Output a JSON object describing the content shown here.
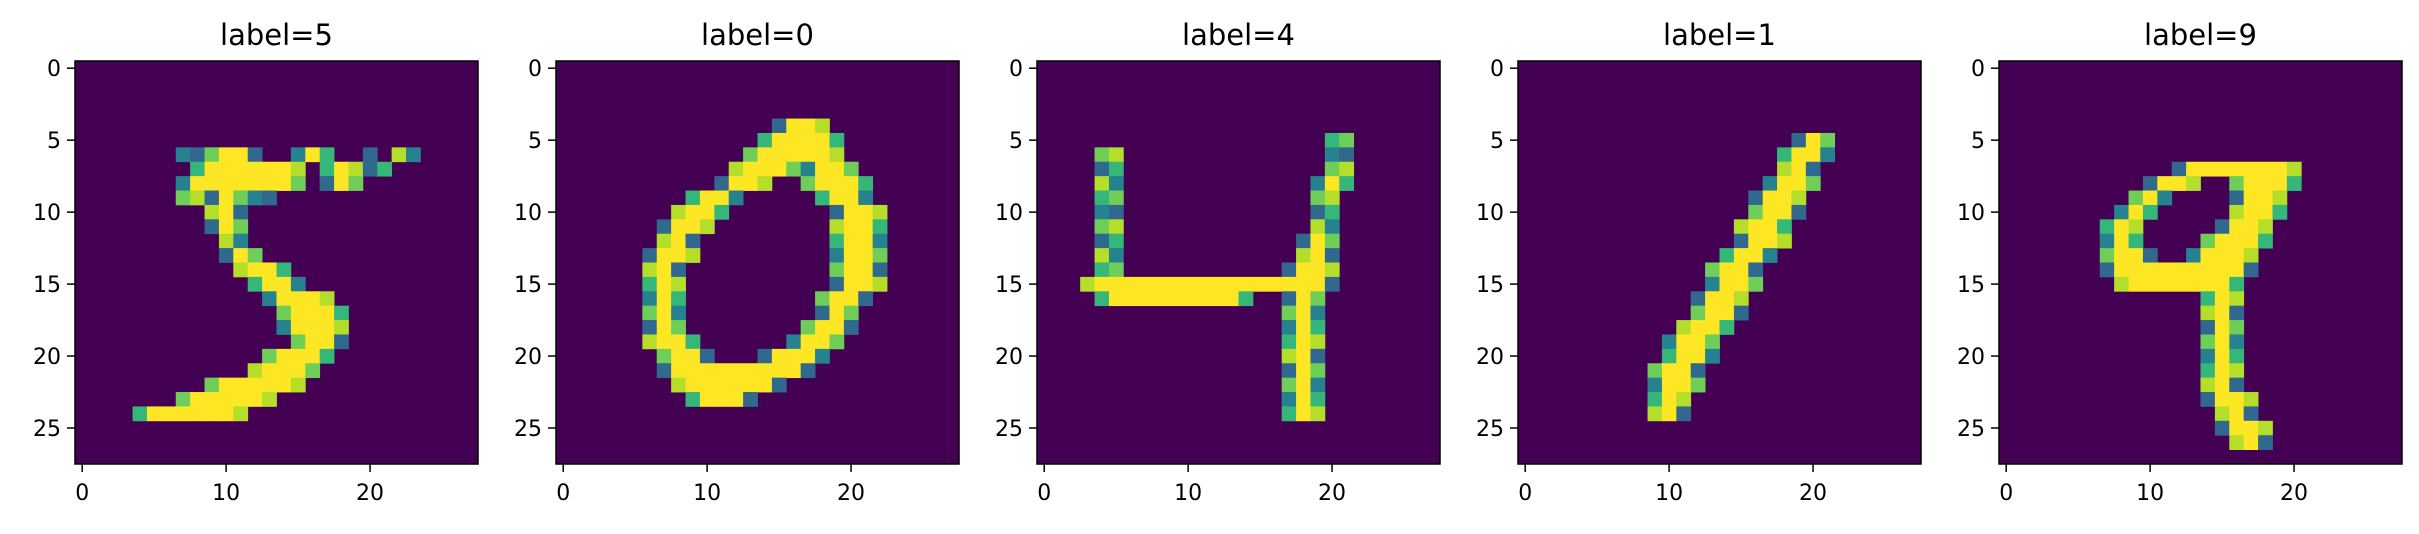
{
  "chart_data": [
    {
      "type": "heatmap",
      "title": "label=5",
      "xticks": [
        0,
        10,
        20
      ],
      "yticks": [
        0,
        5,
        10,
        15,
        20,
        25
      ],
      "xlim": [
        -0.5,
        27.5
      ],
      "ylim": [
        27.5,
        -0.5
      ],
      "colormap": "viridis",
      "pixels": [
        [
          6,
          7,
          8
        ],
        [
          6,
          9,
          12
        ],
        [
          6,
          15,
          17
        ],
        [
          6,
          20,
          20
        ],
        [
          6,
          22,
          23
        ],
        [
          7,
          8,
          15
        ],
        [
          7,
          17,
          19
        ],
        [
          7,
          20,
          21
        ],
        [
          8,
          7,
          15
        ],
        [
          8,
          17,
          19
        ],
        [
          9,
          7,
          8
        ],
        [
          9,
          9,
          11
        ],
        [
          9,
          12,
          13
        ],
        [
          10,
          9,
          11
        ],
        [
          11,
          9,
          11
        ],
        [
          12,
          10,
          11
        ],
        [
          13,
          10,
          12
        ],
        [
          14,
          11,
          14
        ],
        [
          15,
          12,
          15
        ],
        [
          16,
          13,
          17
        ],
        [
          17,
          14,
          18
        ],
        [
          18,
          14,
          18
        ],
        [
          19,
          15,
          18
        ],
        [
          20,
          13,
          17
        ],
        [
          21,
          12,
          16
        ],
        [
          22,
          9,
          15
        ],
        [
          23,
          7,
          13
        ],
        [
          24,
          4,
          11
        ]
      ]
    },
    {
      "type": "heatmap",
      "title": "label=0",
      "xticks": [
        0,
        10,
        20
      ],
      "yticks": [
        0,
        5,
        10,
        15,
        20,
        25
      ],
      "xlim": [
        -0.5,
        27.5
      ],
      "ylim": [
        27.5,
        -0.5
      ],
      "colormap": "viridis",
      "pixels": [
        [
          4,
          15,
          18
        ],
        [
          5,
          14,
          19
        ],
        [
          6,
          13,
          19
        ],
        [
          7,
          12,
          16
        ],
        [
          7,
          17,
          20
        ],
        [
          8,
          11,
          14
        ],
        [
          8,
          17,
          21
        ],
        [
          9,
          9,
          12
        ],
        [
          9,
          18,
          21
        ],
        [
          10,
          8,
          11
        ],
        [
          10,
          19,
          22
        ],
        [
          11,
          7,
          10
        ],
        [
          11,
          19,
          22
        ],
        [
          12,
          7,
          9
        ],
        [
          12,
          19,
          22
        ],
        [
          13,
          6,
          9
        ],
        [
          13,
          19,
          22
        ],
        [
          14,
          6,
          8
        ],
        [
          14,
          19,
          22
        ],
        [
          15,
          6,
          8
        ],
        [
          15,
          19,
          22
        ],
        [
          16,
          6,
          8
        ],
        [
          16,
          18,
          21
        ],
        [
          17,
          6,
          8
        ],
        [
          17,
          18,
          20
        ],
        [
          18,
          6,
          8
        ],
        [
          18,
          17,
          20
        ],
        [
          19,
          6,
          9
        ],
        [
          19,
          16,
          19
        ],
        [
          20,
          7,
          10
        ],
        [
          20,
          14,
          18
        ],
        [
          21,
          7,
          17
        ],
        [
          22,
          8,
          15
        ],
        [
          23,
          9,
          13
        ]
      ]
    },
    {
      "type": "heatmap",
      "title": "label=4",
      "xticks": [
        0,
        10,
        20
      ],
      "yticks": [
        0,
        5,
        10,
        15,
        20,
        25
      ],
      "xlim": [
        -0.5,
        27.5
      ],
      "ylim": [
        27.5,
        -0.5
      ],
      "colormap": "viridis",
      "pixels": [
        [
          5,
          20,
          21
        ],
        [
          6,
          4,
          5
        ],
        [
          6,
          20,
          21
        ],
        [
          7,
          4,
          5
        ],
        [
          7,
          20,
          21
        ],
        [
          8,
          4,
          5
        ],
        [
          8,
          19,
          21
        ],
        [
          9,
          4,
          5
        ],
        [
          9,
          19,
          20
        ],
        [
          10,
          4,
          5
        ],
        [
          10,
          19,
          20
        ],
        [
          11,
          4,
          5
        ],
        [
          11,
          19,
          20
        ],
        [
          12,
          4,
          5
        ],
        [
          12,
          18,
          20
        ],
        [
          13,
          4,
          5
        ],
        [
          13,
          18,
          20
        ],
        [
          14,
          4,
          5
        ],
        [
          14,
          17,
          20
        ],
        [
          15,
          3,
          20
        ],
        [
          16,
          4,
          14
        ],
        [
          16,
          17,
          19
        ],
        [
          17,
          17,
          19
        ],
        [
          18,
          17,
          19
        ],
        [
          19,
          17,
          19
        ],
        [
          20,
          17,
          19
        ],
        [
          21,
          17,
          19
        ],
        [
          22,
          17,
          19
        ],
        [
          23,
          17,
          19
        ],
        [
          24,
          17,
          19
        ]
      ]
    },
    {
      "type": "heatmap",
      "title": "label=1",
      "xticks": [
        0,
        10,
        20
      ],
      "yticks": [
        0,
        5,
        10,
        15,
        20,
        25
      ],
      "xlim": [
        -0.5,
        27.5
      ],
      "ylim": [
        27.5,
        -0.5
      ],
      "colormap": "viridis",
      "pixels": [
        [
          5,
          19,
          21
        ],
        [
          6,
          18,
          21
        ],
        [
          7,
          18,
          20
        ],
        [
          8,
          17,
          20
        ],
        [
          9,
          16,
          19
        ],
        [
          10,
          16,
          19
        ],
        [
          11,
          15,
          18
        ],
        [
          12,
          15,
          18
        ],
        [
          13,
          14,
          17
        ],
        [
          14,
          13,
          16
        ],
        [
          15,
          13,
          16
        ],
        [
          16,
          12,
          15
        ],
        [
          17,
          12,
          15
        ],
        [
          18,
          11,
          14
        ],
        [
          19,
          10,
          13
        ],
        [
          20,
          10,
          13
        ],
        [
          21,
          9,
          12
        ],
        [
          22,
          9,
          12
        ],
        [
          23,
          9,
          11
        ],
        [
          24,
          9,
          11
        ]
      ]
    },
    {
      "type": "heatmap",
      "title": "label=9",
      "xticks": [
        0,
        10,
        20
      ],
      "yticks": [
        0,
        5,
        10,
        15,
        20,
        25
      ],
      "xlim": [
        -0.5,
        27.5
      ],
      "ylim": [
        27.5,
        -0.5
      ],
      "colormap": "viridis",
      "pixels": [
        [
          7,
          12,
          20
        ],
        [
          8,
          10,
          13
        ],
        [
          8,
          16,
          20
        ],
        [
          9,
          9,
          11
        ],
        [
          9,
          16,
          19
        ],
        [
          10,
          8,
          10
        ],
        [
          10,
          16,
          19
        ],
        [
          11,
          7,
          9
        ],
        [
          11,
          15,
          18
        ],
        [
          12,
          7,
          9
        ],
        [
          12,
          14,
          18
        ],
        [
          13,
          7,
          10
        ],
        [
          13,
          13,
          17
        ],
        [
          14,
          7,
          17
        ],
        [
          15,
          8,
          16
        ],
        [
          16,
          14,
          16
        ],
        [
          17,
          14,
          16
        ],
        [
          18,
          14,
          16
        ],
        [
          19,
          14,
          16
        ],
        [
          20,
          14,
          16
        ],
        [
          21,
          14,
          16
        ],
        [
          22,
          14,
          16
        ],
        [
          23,
          14,
          17
        ],
        [
          24,
          15,
          17
        ],
        [
          25,
          15,
          18
        ],
        [
          26,
          16,
          18
        ]
      ]
    }
  ]
}
